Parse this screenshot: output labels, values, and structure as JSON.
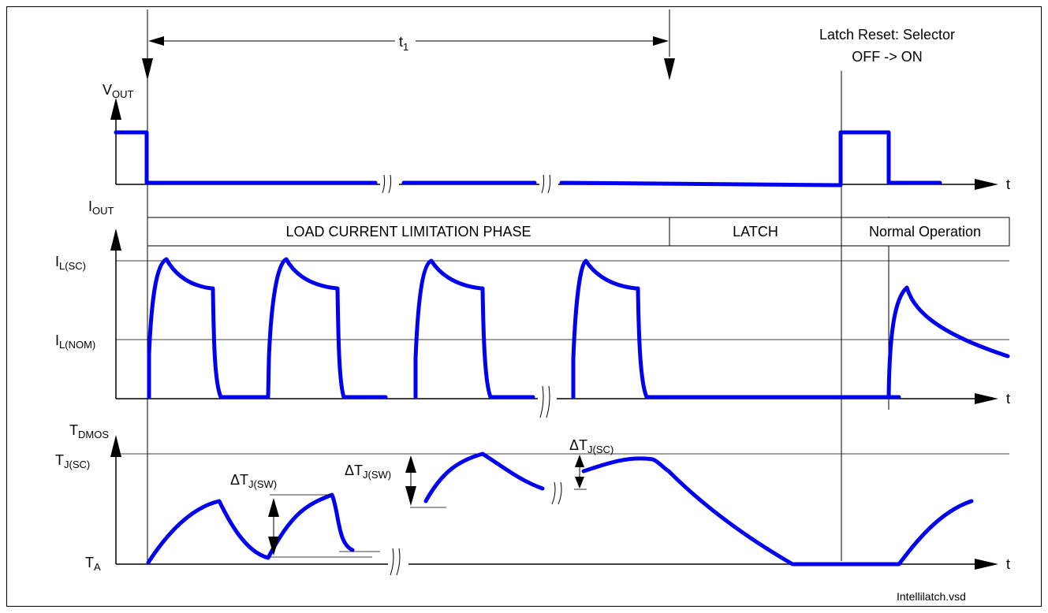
{
  "timing": {
    "t1_main": "t",
    "t1_sub": "1",
    "reset_label_line1": "Latch Reset: Selector",
    "reset_label_line2": "OFF -> ON"
  },
  "axes": {
    "vout": {
      "main": "V",
      "sub": "OUT"
    },
    "iout": {
      "main": "I",
      "sub": "OUT"
    },
    "tdmos": {
      "main": "T",
      "sub": "DMOS"
    },
    "time_label": "t"
  },
  "levels": {
    "il_sc": {
      "main": "I",
      "sub": "L(SC)"
    },
    "il_nom": {
      "main": "I",
      "sub": "L(NOM)"
    },
    "tj_sc": {
      "main": "T",
      "sub": "J(SC)"
    },
    "ta": {
      "main": "T",
      "sub": "A"
    }
  },
  "phases": {
    "current_limitation": "LOAD CURRENT LIMITATION PHASE",
    "latch": "LATCH",
    "normal": "Normal Operation"
  },
  "annotations": {
    "dtj_sw_1": {
      "delta": "ΔT",
      "sub": "J(SW)"
    },
    "dtj_sw_2": {
      "delta": "ΔT",
      "sub": "J(SW)"
    },
    "dtj_sc": {
      "delta": "ΔT",
      "sub": "J(SC)"
    }
  },
  "footer": {
    "filename": "Intellilatch.vsd"
  },
  "colors": {
    "trace": "#0000f0",
    "line": "#000000",
    "background": "#ffffff"
  }
}
